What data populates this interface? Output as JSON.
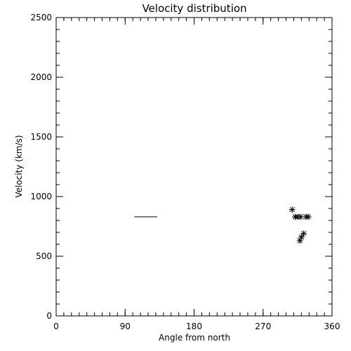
{
  "chart_data": {
    "type": "scatter",
    "title": "Velocity distribution",
    "xlabel": "Angle from north",
    "ylabel": "Velocity (km/s)",
    "xlim": [
      0,
      360
    ],
    "ylim": [
      0,
      2500
    ],
    "xticks": [
      0,
      90,
      180,
      270,
      360
    ],
    "yticks": [
      0,
      500,
      1000,
      1500,
      2000,
      2500
    ],
    "x_minor_step": 10,
    "y_minor_step": 100,
    "grid": false,
    "marker": "asterisk",
    "points": [
      {
        "x": 308,
        "y": 890
      },
      {
        "x": 312,
        "y": 830
      },
      {
        "x": 315,
        "y": 830
      },
      {
        "x": 319,
        "y": 830
      },
      {
        "x": 326,
        "y": 830
      },
      {
        "x": 329,
        "y": 830
      },
      {
        "x": 318,
        "y": 630
      },
      {
        "x": 320,
        "y": 660
      },
      {
        "x": 323,
        "y": 690
      }
    ],
    "segments": [
      {
        "x": [
          102,
          132
        ],
        "y": [
          830,
          830
        ]
      }
    ]
  }
}
